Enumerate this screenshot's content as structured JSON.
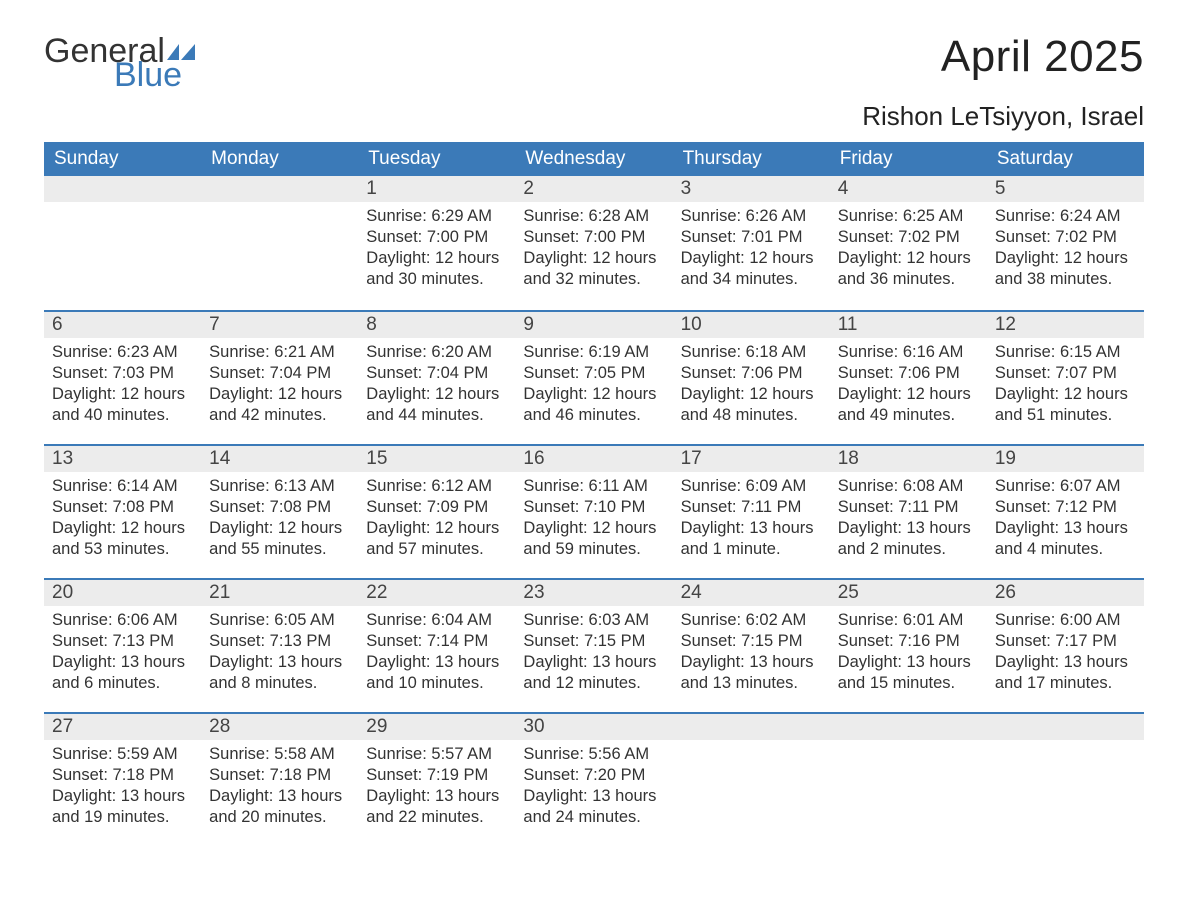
{
  "logo": {
    "part1": "General",
    "part2": "Blue"
  },
  "title": "April 2025",
  "location": "Rishon LeTsiyyon, Israel",
  "colors": {
    "header_bg": "#3b7ab8",
    "header_text": "#ffffff",
    "daynum_bg": "#ececec",
    "daynum_border": "#3b7ab8",
    "body_text": "#333333",
    "page_bg": "#ffffff"
  },
  "weekdays": [
    "Sunday",
    "Monday",
    "Tuesday",
    "Wednesday",
    "Thursday",
    "Friday",
    "Saturday"
  ],
  "weeks": [
    [
      null,
      null,
      {
        "day": "1",
        "sunrise": "6:29 AM",
        "sunset": "7:00 PM",
        "daylight": "12 hours and 30 minutes."
      },
      {
        "day": "2",
        "sunrise": "6:28 AM",
        "sunset": "7:00 PM",
        "daylight": "12 hours and 32 minutes."
      },
      {
        "day": "3",
        "sunrise": "6:26 AM",
        "sunset": "7:01 PM",
        "daylight": "12 hours and 34 minutes."
      },
      {
        "day": "4",
        "sunrise": "6:25 AM",
        "sunset": "7:02 PM",
        "daylight": "12 hours and 36 minutes."
      },
      {
        "day": "5",
        "sunrise": "6:24 AM",
        "sunset": "7:02 PM",
        "daylight": "12 hours and 38 minutes."
      }
    ],
    [
      {
        "day": "6",
        "sunrise": "6:23 AM",
        "sunset": "7:03 PM",
        "daylight": "12 hours and 40 minutes."
      },
      {
        "day": "7",
        "sunrise": "6:21 AM",
        "sunset": "7:04 PM",
        "daylight": "12 hours and 42 minutes."
      },
      {
        "day": "8",
        "sunrise": "6:20 AM",
        "sunset": "7:04 PM",
        "daylight": "12 hours and 44 minutes."
      },
      {
        "day": "9",
        "sunrise": "6:19 AM",
        "sunset": "7:05 PM",
        "daylight": "12 hours and 46 minutes."
      },
      {
        "day": "10",
        "sunrise": "6:18 AM",
        "sunset": "7:06 PM",
        "daylight": "12 hours and 48 minutes."
      },
      {
        "day": "11",
        "sunrise": "6:16 AM",
        "sunset": "7:06 PM",
        "daylight": "12 hours and 49 minutes."
      },
      {
        "day": "12",
        "sunrise": "6:15 AM",
        "sunset": "7:07 PM",
        "daylight": "12 hours and 51 minutes."
      }
    ],
    [
      {
        "day": "13",
        "sunrise": "6:14 AM",
        "sunset": "7:08 PM",
        "daylight": "12 hours and 53 minutes."
      },
      {
        "day": "14",
        "sunrise": "6:13 AM",
        "sunset": "7:08 PM",
        "daylight": "12 hours and 55 minutes."
      },
      {
        "day": "15",
        "sunrise": "6:12 AM",
        "sunset": "7:09 PM",
        "daylight": "12 hours and 57 minutes."
      },
      {
        "day": "16",
        "sunrise": "6:11 AM",
        "sunset": "7:10 PM",
        "daylight": "12 hours and 59 minutes."
      },
      {
        "day": "17",
        "sunrise": "6:09 AM",
        "sunset": "7:11 PM",
        "daylight": "13 hours and 1 minute."
      },
      {
        "day": "18",
        "sunrise": "6:08 AM",
        "sunset": "7:11 PM",
        "daylight": "13 hours and 2 minutes."
      },
      {
        "day": "19",
        "sunrise": "6:07 AM",
        "sunset": "7:12 PM",
        "daylight": "13 hours and 4 minutes."
      }
    ],
    [
      {
        "day": "20",
        "sunrise": "6:06 AM",
        "sunset": "7:13 PM",
        "daylight": "13 hours and 6 minutes."
      },
      {
        "day": "21",
        "sunrise": "6:05 AM",
        "sunset": "7:13 PM",
        "daylight": "13 hours and 8 minutes."
      },
      {
        "day": "22",
        "sunrise": "6:04 AM",
        "sunset": "7:14 PM",
        "daylight": "13 hours and 10 minutes."
      },
      {
        "day": "23",
        "sunrise": "6:03 AM",
        "sunset": "7:15 PM",
        "daylight": "13 hours and 12 minutes."
      },
      {
        "day": "24",
        "sunrise": "6:02 AM",
        "sunset": "7:15 PM",
        "daylight": "13 hours and 13 minutes."
      },
      {
        "day": "25",
        "sunrise": "6:01 AM",
        "sunset": "7:16 PM",
        "daylight": "13 hours and 15 minutes."
      },
      {
        "day": "26",
        "sunrise": "6:00 AM",
        "sunset": "7:17 PM",
        "daylight": "13 hours and 17 minutes."
      }
    ],
    [
      {
        "day": "27",
        "sunrise": "5:59 AM",
        "sunset": "7:18 PM",
        "daylight": "13 hours and 19 minutes."
      },
      {
        "day": "28",
        "sunrise": "5:58 AM",
        "sunset": "7:18 PM",
        "daylight": "13 hours and 20 minutes."
      },
      {
        "day": "29",
        "sunrise": "5:57 AM",
        "sunset": "7:19 PM",
        "daylight": "13 hours and 22 minutes."
      },
      {
        "day": "30",
        "sunrise": "5:56 AM",
        "sunset": "7:20 PM",
        "daylight": "13 hours and 24 minutes."
      },
      null,
      null,
      null
    ]
  ],
  "labels": {
    "sunrise": "Sunrise: ",
    "sunset": "Sunset: ",
    "daylight": "Daylight: "
  }
}
